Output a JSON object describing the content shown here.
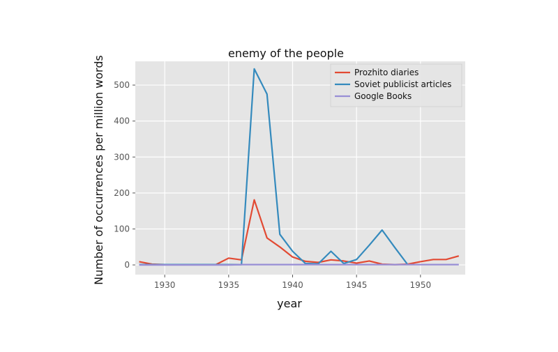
{
  "chart_data": {
    "type": "line",
    "title": "enemy of the people",
    "xlabel": "year",
    "ylabel": "Number of occurrences per million words",
    "xlim": [
      1927.7,
      1953.5
    ],
    "ylim": [
      -27,
      566
    ],
    "xticks": [
      1930,
      1935,
      1940,
      1945,
      1950
    ],
    "yticks": [
      0,
      100,
      200,
      300,
      400,
      500
    ],
    "grid": true,
    "legend_position": "top-right",
    "series": [
      {
        "name": "Prozhito diaries",
        "color": "#e24a33",
        "x": [
          1928,
          1929,
          1930,
          1931,
          1932,
          1933,
          1934,
          1935,
          1936,
          1937,
          1938,
          1939,
          1940,
          1941,
          1942,
          1943,
          1944,
          1945,
          1946,
          1947,
          1948,
          1949,
          1950,
          1951,
          1952,
          1953
        ],
        "y": [
          9,
          2,
          1,
          1,
          1,
          1,
          1,
          19,
          14,
          181,
          75,
          50,
          22,
          10,
          7,
          14,
          11,
          5,
          11,
          2,
          1,
          2,
          9,
          15,
          15,
          25
        ]
      },
      {
        "name": "Soviet publicist articles",
        "color": "#348abd",
        "x": [
          1928,
          1929,
          1930,
          1931,
          1932,
          1933,
          1934,
          1935,
          1936,
          1937,
          1938,
          1939,
          1940,
          1941,
          1942,
          1943,
          1944,
          1945,
          1946,
          1947,
          1948,
          1949
        ],
        "y": [
          1,
          1,
          1,
          1,
          1,
          1,
          1,
          1,
          1,
          545,
          475,
          85,
          38,
          4,
          3,
          38,
          4,
          15,
          55,
          97,
          48,
          1
        ]
      },
      {
        "name": "Google Books",
        "color": "#988ed5",
        "x": [
          1928,
          1929,
          1930,
          1931,
          1932,
          1933,
          1934,
          1935,
          1936,
          1937,
          1938,
          1939,
          1940,
          1941,
          1942,
          1943,
          1944,
          1945,
          1946,
          1947,
          1948,
          1949,
          1950,
          1951,
          1952,
          1953
        ],
        "y": [
          0,
          0,
          0,
          0,
          0,
          0,
          0,
          0,
          1,
          1,
          1,
          1,
          1,
          1,
          1,
          1,
          1,
          1,
          1,
          1,
          1,
          1,
          1,
          1,
          1,
          1
        ]
      }
    ]
  }
}
